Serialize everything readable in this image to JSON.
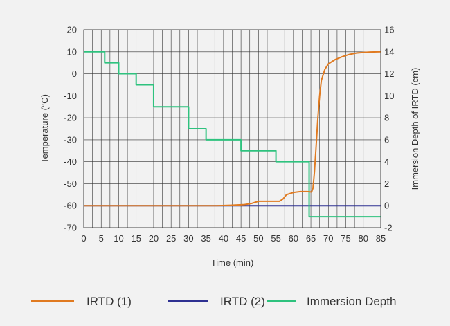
{
  "chart_data": {
    "type": "line",
    "xlabel": "Time (min)",
    "ylabel": "Temperature (°C)",
    "y2label": "Immersion Depth of IRTD (cm)",
    "xlim": [
      0,
      85
    ],
    "ylim": [
      -70,
      20
    ],
    "y2lim": [
      -2,
      16
    ],
    "x_ticks": [
      "0",
      "5",
      "10",
      "15",
      "20",
      "25",
      "30",
      "35",
      "40",
      "45",
      "50",
      "55",
      "60",
      "65",
      "70",
      "75",
      "80",
      "85"
    ],
    "y_ticks": [
      "20",
      "10",
      "0",
      "-10",
      "-20",
      "-30",
      "-40",
      "-50",
      "-60",
      "-70"
    ],
    "y2_ticks": [
      "16",
      "14",
      "12",
      "10",
      "8",
      "6",
      "4",
      "2",
      "0",
      "-2"
    ],
    "grid": true,
    "legend_position": "bottom",
    "series": [
      {
        "name": "IRTD (1)",
        "color": "#e07a20",
        "axis": "left",
        "points": [
          [
            0,
            -60
          ],
          [
            38,
            -60
          ],
          [
            42,
            -59.8
          ],
          [
            46,
            -59.5
          ],
          [
            48,
            -59
          ],
          [
            50,
            -58
          ],
          [
            56,
            -58
          ],
          [
            57,
            -57
          ],
          [
            58,
            -55
          ],
          [
            60,
            -54
          ],
          [
            62,
            -53.6
          ],
          [
            64,
            -53.6
          ],
          [
            65.2,
            -53.8
          ],
          [
            65.6,
            -52
          ],
          [
            66,
            -45
          ],
          [
            66.5,
            -33
          ],
          [
            67,
            -20
          ],
          [
            67.5,
            -10
          ],
          [
            68,
            -3
          ],
          [
            69,
            2
          ],
          [
            70,
            4.5
          ],
          [
            72,
            6.5
          ],
          [
            74,
            7.8
          ],
          [
            76,
            8.8
          ],
          [
            78,
            9.4
          ],
          [
            80,
            9.7
          ],
          [
            82,
            9.9
          ],
          [
            85,
            10
          ]
        ]
      },
      {
        "name": "IRTD (2)",
        "color": "#2e3192",
        "axis": "left",
        "points": [
          [
            0,
            -60
          ],
          [
            85,
            -60
          ]
        ]
      },
      {
        "name": "Immersion Depth",
        "color": "#2ec27e",
        "axis": "right",
        "points": [
          [
            0,
            14
          ],
          [
            6,
            14
          ],
          [
            6,
            13
          ],
          [
            10,
            13
          ],
          [
            10,
            12
          ],
          [
            15,
            12
          ],
          [
            15,
            11
          ],
          [
            20,
            11
          ],
          [
            20,
            9
          ],
          [
            30,
            9
          ],
          [
            30,
            7
          ],
          [
            35,
            7
          ],
          [
            35,
            6
          ],
          [
            45,
            6
          ],
          [
            45,
            5
          ],
          [
            55,
            5
          ],
          [
            55,
            4
          ],
          [
            64.5,
            4
          ],
          [
            64.5,
            -1
          ],
          [
            85,
            -1
          ]
        ]
      }
    ]
  }
}
